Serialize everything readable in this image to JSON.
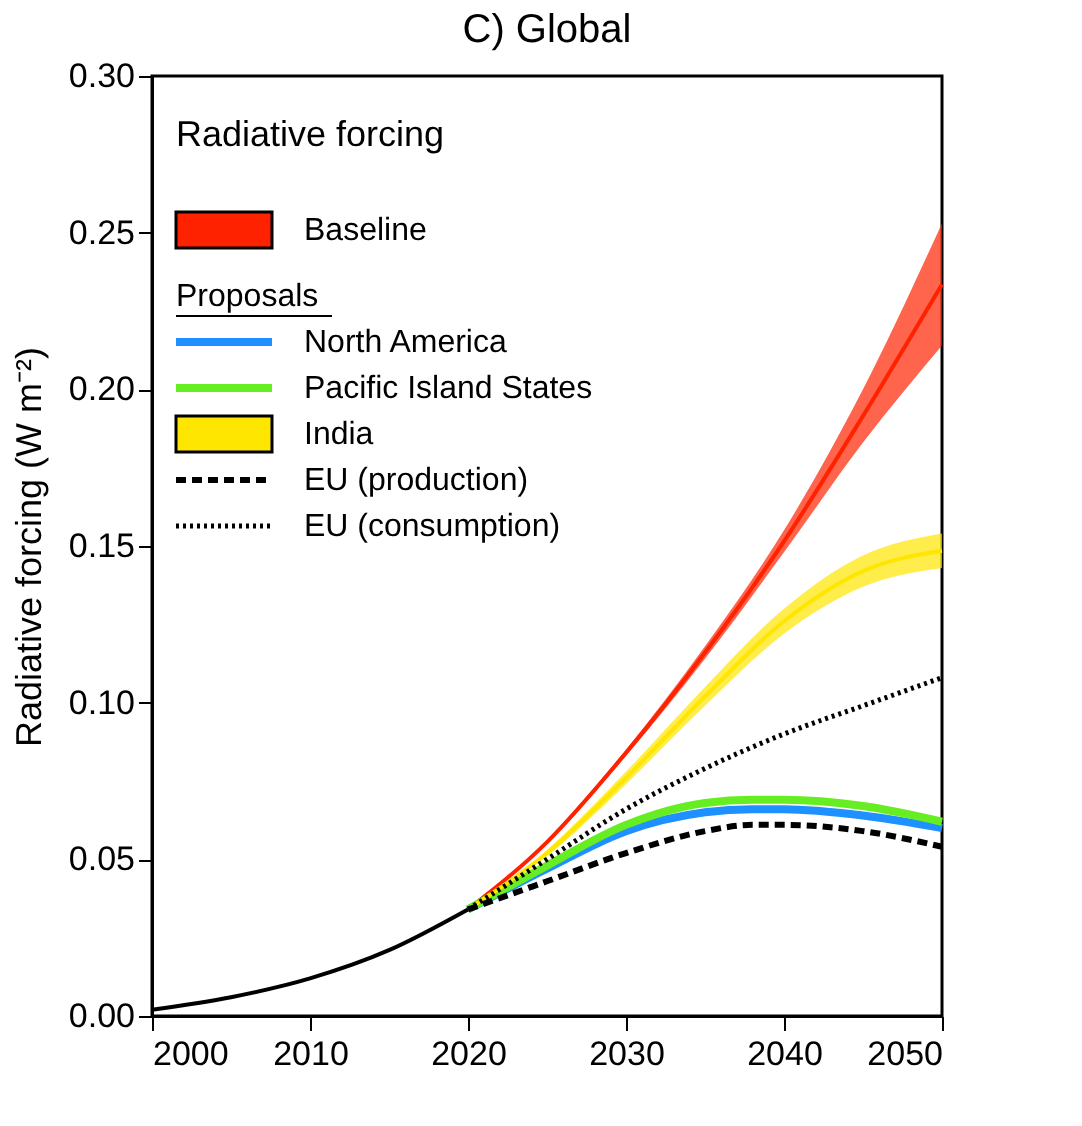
{
  "chart_data": {
    "type": "line",
    "title": "C) Global",
    "ylabel": "Radiative forcing (W m⁻²)",
    "legend_title": "Radiative forcing",
    "legend": "top left",
    "annotations": [
      "Proposals"
    ],
    "xlim": [
      2000,
      2050
    ],
    "xticks": [
      2000,
      2010,
      2020,
      2030,
      2040,
      2050
    ],
    "ylim": [
      0,
      0.3
    ],
    "yticks": [
      {
        "value": 0,
        "label": "0.00"
      },
      0.05,
      {
        "value": 0.1,
        "label": "0.10"
      },
      0.15,
      {
        "value": 0.2,
        "label": "0.20"
      },
      0.25,
      {
        "value": 0.3,
        "label": "0.30"
      }
    ],
    "grid": false,
    "marker": "none",
    "series": [
      {
        "name": "Baseline",
        "color": "#ff2200",
        "line_style": "solid",
        "x": [
          2020,
          2025,
          2030,
          2035,
          2040,
          2045,
          2050
        ],
        "values": [
          0.034,
          0.0555,
          0.084,
          0.116,
          0.1515,
          0.1915,
          0.2335
        ],
        "lower": [
          0.034,
          0.055,
          0.083,
          0.114,
          0.148,
          0.183,
          0.214
        ],
        "upper": [
          0.034,
          0.056,
          0.085,
          0.118,
          0.155,
          0.2,
          0.253
        ]
      },
      {
        "name": "North America",
        "color": "#1e90ff",
        "line_style": "solid",
        "x": [
          2020,
          2025,
          2030,
          2035,
          2038,
          2040,
          2045,
          2050
        ],
        "values": [
          0.034,
          0.047,
          0.059,
          0.065,
          0.066,
          0.066,
          0.064,
          0.06
        ]
      },
      {
        "name": "Pacific Island States",
        "color": "#66ee22",
        "line_style": "solid",
        "x": [
          2020,
          2025,
          2030,
          2035,
          2038,
          2040,
          2045,
          2050
        ],
        "values": [
          0.034,
          0.048,
          0.061,
          0.068,
          0.069,
          0.069,
          0.067,
          0.062
        ]
      },
      {
        "name": "India",
        "color": "#ffe600",
        "line_style": "solid",
        "x": [
          2020,
          2025,
          2030,
          2035,
          2040,
          2045,
          2050
        ],
        "values": [
          0.034,
          0.052,
          0.076,
          0.102,
          0.126,
          0.142,
          0.1485
        ],
        "lower": [
          0.034,
          0.051,
          0.074,
          0.099,
          0.122,
          0.137,
          0.143
        ],
        "upper": [
          0.034,
          0.053,
          0.078,
          0.105,
          0.13,
          0.147,
          0.154
        ]
      },
      {
        "name": "EU (production)",
        "color": "#000000",
        "line_style": "dashed",
        "x": [
          2020,
          2025,
          2030,
          2035,
          2038,
          2040,
          2045,
          2050
        ],
        "values": [
          0.034,
          0.043,
          0.052,
          0.059,
          0.061,
          0.061,
          0.059,
          0.054
        ]
      },
      {
        "name": "EU (consumption)",
        "color": "#000000",
        "line_style": "dotted",
        "x": [
          2020,
          2025,
          2030,
          2035,
          2040,
          2045,
          2050
        ],
        "values": [
          0.034,
          0.05,
          0.066,
          0.079,
          0.09,
          0.099,
          0.108
        ]
      },
      {
        "color": "#000000",
        "line_style": "solid",
        "x": [
          2000,
          2005,
          2010,
          2015,
          2020
        ],
        "values": [
          0.002,
          0.006,
          0.012,
          0.021,
          0.034
        ]
      }
    ]
  }
}
